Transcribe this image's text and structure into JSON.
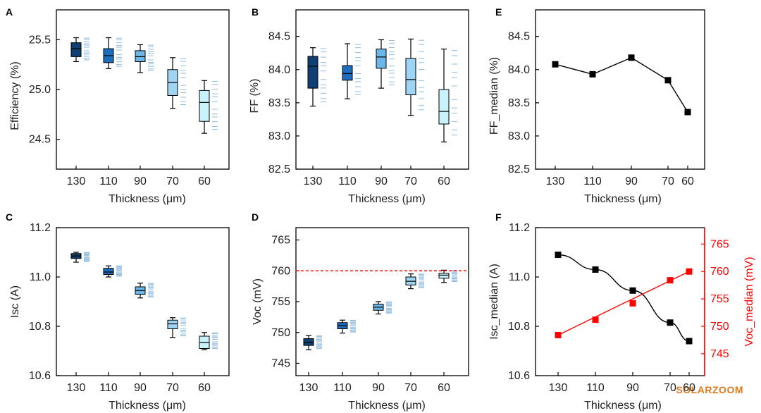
{
  "x_categories": [
    "130",
    "110",
    "90",
    "70",
    "60"
  ],
  "x_label": "Thickness (μm)",
  "watermark": "SOLARZOOM",
  "colors": {
    "box_fills": [
      "#0f3f73",
      "#1e6ec0",
      "#6db7e8",
      "#9fd4f3",
      "#c9f3fb"
    ],
    "scatter": "#6aa6d6",
    "axis": "#000000",
    "ref_line": "#ff0000",
    "voc_series": "#ff0000",
    "isc_series": "#000000"
  },
  "chart_data": [
    {
      "id": "A",
      "panel_label": "A",
      "type": "box",
      "ylabel": "Efficiency (%)",
      "ylim": [
        24.2,
        25.8
      ],
      "yticks": [
        24.5,
        25.0,
        25.5
      ],
      "ytick_labels": [
        "24.5",
        "25.0",
        "25.5"
      ],
      "boxes": [
        {
          "category": "130",
          "whisker_low": 25.28,
          "q1": 25.33,
          "median": 25.41,
          "q3": 25.47,
          "whisker_high": 25.52
        },
        {
          "category": "110",
          "whisker_low": 25.21,
          "q1": 25.27,
          "median": 25.34,
          "q3": 25.41,
          "whisker_high": 25.52
        },
        {
          "category": "90",
          "whisker_low": 25.17,
          "q1": 25.28,
          "median": 25.33,
          "q3": 25.39,
          "whisker_high": 25.45
        },
        {
          "category": "70",
          "whisker_low": 24.81,
          "q1": 24.94,
          "median": 25.07,
          "q3": 25.2,
          "whisker_high": 25.32
        },
        {
          "category": "60",
          "whisker_low": 24.56,
          "q1": 24.68,
          "median": 24.87,
          "q3": 24.99,
          "whisker_high": 25.09
        }
      ]
    },
    {
      "id": "B",
      "panel_label": "B",
      "type": "box",
      "ylabel": "FF (%)",
      "ylim": [
        82.5,
        84.9
      ],
      "yticks": [
        82.5,
        83.0,
        83.5,
        84.0,
        84.5
      ],
      "ytick_labels": [
        "82.5",
        "83.0",
        "83.5",
        "84.0",
        "84.5"
      ],
      "boxes": [
        {
          "category": "130",
          "whisker_low": 83.45,
          "q1": 83.72,
          "median": 84.05,
          "q3": 84.2,
          "whisker_high": 84.33
        },
        {
          "category": "110",
          "whisker_low": 83.56,
          "q1": 83.84,
          "median": 83.94,
          "q3": 84.06,
          "whisker_high": 84.39
        },
        {
          "category": "90",
          "whisker_low": 83.72,
          "q1": 84.02,
          "median": 84.19,
          "q3": 84.31,
          "whisker_high": 84.45
        },
        {
          "category": "70",
          "whisker_low": 83.31,
          "q1": 83.62,
          "median": 83.85,
          "q3": 84.17,
          "whisker_high": 84.46
        },
        {
          "category": "60",
          "whisker_low": 82.91,
          "q1": 83.18,
          "median": 83.37,
          "q3": 83.7,
          "whisker_high": 84.31
        }
      ]
    },
    {
      "id": "E",
      "panel_label": "E",
      "type": "line",
      "ylabel": "FF_median (%)",
      "ylim": [
        82.5,
        84.9
      ],
      "yticks": [
        82.5,
        83.0,
        83.5,
        84.0,
        84.5
      ],
      "ytick_labels": [
        "82.5",
        "83.0",
        "83.5",
        "84.0",
        "84.5"
      ],
      "x": [
        130,
        110,
        90,
        70,
        60
      ],
      "y": [
        84.08,
        83.93,
        84.18,
        83.84,
        83.36
      ]
    },
    {
      "id": "C",
      "panel_label": "C",
      "type": "box",
      "ylabel": "Isc (A)",
      "ylim": [
        10.6,
        11.2
      ],
      "yticks": [
        10.6,
        10.8,
        11.0,
        11.2
      ],
      "ytick_labels": [
        "10.6",
        "10.8",
        "11.0",
        "11.2"
      ],
      "boxes": [
        {
          "category": "130",
          "whisker_low": 11.06,
          "q1": 11.075,
          "median": 11.085,
          "q3": 11.095,
          "whisker_high": 11.1
        },
        {
          "category": "110",
          "whisker_low": 11.0,
          "q1": 11.01,
          "median": 11.02,
          "q3": 11.035,
          "whisker_high": 11.045
        },
        {
          "category": "90",
          "whisker_low": 10.915,
          "q1": 10.93,
          "median": 10.945,
          "q3": 10.96,
          "whisker_high": 10.975
        },
        {
          "category": "70",
          "whisker_low": 10.755,
          "q1": 10.79,
          "median": 10.81,
          "q3": 10.825,
          "whisker_high": 10.835
        },
        {
          "category": "60",
          "whisker_low": 10.705,
          "q1": 10.71,
          "median": 10.735,
          "q3": 10.76,
          "whisker_high": 10.775
        }
      ]
    },
    {
      "id": "D",
      "panel_label": "D",
      "type": "box",
      "ylabel": "Voc (mV)",
      "ylim": [
        743,
        767
      ],
      "yticks": [
        745,
        750,
        755,
        760,
        765
      ],
      "ytick_labels": [
        "745",
        "750",
        "755",
        "760",
        "765"
      ],
      "reference_line": 760,
      "boxes": [
        {
          "category": "130",
          "whisker_low": 747.2,
          "q1": 747.9,
          "median": 748.4,
          "q3": 749.0,
          "whisker_high": 749.5
        },
        {
          "category": "110",
          "whisker_low": 749.9,
          "q1": 750.6,
          "median": 751.1,
          "q3": 751.6,
          "whisker_high": 752.0
        },
        {
          "category": "90",
          "whisker_low": 753.0,
          "q1": 753.6,
          "median": 754.1,
          "q3": 754.6,
          "whisker_high": 755.0
        },
        {
          "category": "70",
          "whisker_low": 757.1,
          "q1": 757.7,
          "median": 758.3,
          "q3": 759.0,
          "whisker_high": 759.5
        },
        {
          "category": "60",
          "whisker_low": 758.1,
          "q1": 758.8,
          "median": 759.3,
          "q3": 759.6,
          "whisker_high": 760.1
        }
      ]
    },
    {
      "id": "F",
      "panel_label": "F",
      "type": "dual-line",
      "ylabel": "Isc_median (A)",
      "ylim": [
        10.6,
        11.2
      ],
      "yticks": [
        10.6,
        10.8,
        11.0,
        11.2
      ],
      "ytick_labels": [
        "10.6",
        "10.8",
        "11.0",
        "11.2"
      ],
      "ylabel_right": "Voc_median (mV)",
      "ylim_right": [
        741,
        768
      ],
      "yticks_right": [
        745,
        750,
        755,
        760,
        765
      ],
      "ytick_labels_right": [
        "745",
        "750",
        "755",
        "760",
        "765"
      ],
      "x": [
        130,
        110,
        90,
        70,
        60
      ],
      "series": [
        {
          "axis": "left",
          "values": [
            11.09,
            11.03,
            10.945,
            10.815,
            10.74
          ]
        },
        {
          "axis": "right",
          "values": [
            748.4,
            751.2,
            754.2,
            758.4,
            760.0
          ]
        }
      ]
    }
  ]
}
